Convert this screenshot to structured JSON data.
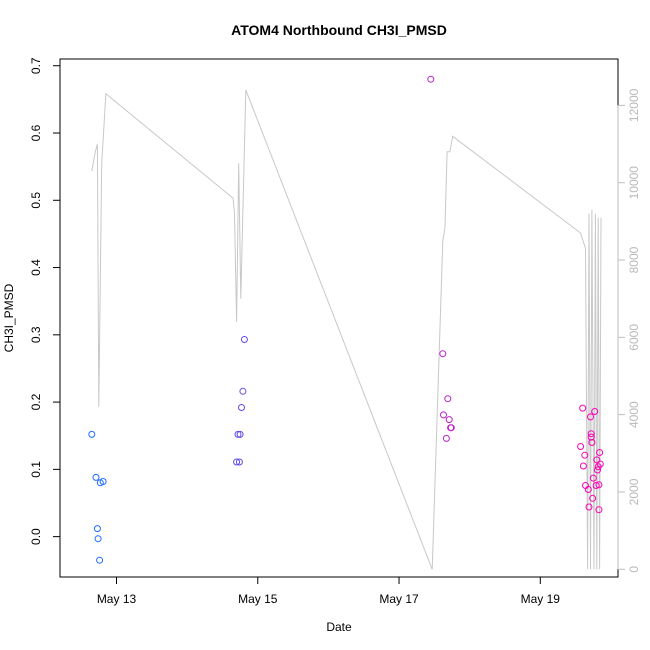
{
  "chart_data": {
    "type": "scatter",
    "title": "ATOM4 Northbound CH3I_PMSD",
    "xlabel": "Date",
    "ylabel": "CH3I_PMSD",
    "x_ticks": [
      {
        "label": "May 13",
        "day": 13
      },
      {
        "label": "May 15",
        "day": 15
      },
      {
        "label": "May 17",
        "day": 17
      },
      {
        "label": "May 19",
        "day": 19
      }
    ],
    "xlim_days": [
      12.2,
      20.1
    ],
    "y_left": {
      "ticks": [
        0.0,
        0.1,
        0.2,
        0.3,
        0.4,
        0.5,
        0.6,
        0.7
      ],
      "tick_labels": [
        "0.0",
        "0.1",
        "0.2",
        "0.3",
        "0.4",
        "0.5",
        "0.6",
        "0.7"
      ],
      "lim": [
        -0.06,
        0.71
      ]
    },
    "y_right": {
      "ticks": [
        0,
        2000,
        4000,
        6000,
        8000,
        10000,
        12000
      ],
      "tick_labels": [
        "0",
        "2000",
        "4000",
        "6000",
        "8000",
        "10000",
        "12000"
      ],
      "lim": [
        -200,
        13200
      ],
      "color": "#bdbdbd"
    },
    "points": [
      {
        "x": 12.65,
        "y": 0.152
      },
      {
        "x": 12.71,
        "y": 0.088
      },
      {
        "x": 12.73,
        "y": 0.012
      },
      {
        "x": 12.74,
        "y": -0.003
      },
      {
        "x": 12.76,
        "y": -0.035
      },
      {
        "x": 12.77,
        "y": 0.08
      },
      {
        "x": 12.81,
        "y": 0.082
      },
      {
        "x": 14.7,
        "y": 0.111
      },
      {
        "x": 14.72,
        "y": 0.152
      },
      {
        "x": 14.74,
        "y": 0.111
      },
      {
        "x": 14.75,
        "y": 0.152
      },
      {
        "x": 14.77,
        "y": 0.192
      },
      {
        "x": 14.79,
        "y": 0.216
      },
      {
        "x": 14.81,
        "y": 0.293
      },
      {
        "x": 17.45,
        "y": 0.68
      },
      {
        "x": 17.62,
        "y": 0.272
      },
      {
        "x": 17.63,
        "y": 0.181
      },
      {
        "x": 17.67,
        "y": 0.146
      },
      {
        "x": 17.69,
        "y": 0.205
      },
      {
        "x": 17.71,
        "y": 0.174
      },
      {
        "x": 17.73,
        "y": 0.162
      },
      {
        "x": 17.74,
        "y": 0.162
      },
      {
        "x": 19.57,
        "y": 0.134
      },
      {
        "x": 19.6,
        "y": 0.191
      },
      {
        "x": 19.61,
        "y": 0.105
      },
      {
        "x": 19.63,
        "y": 0.121
      },
      {
        "x": 19.64,
        "y": 0.076
      },
      {
        "x": 19.68,
        "y": 0.07
      },
      {
        "x": 19.69,
        "y": 0.044
      },
      {
        "x": 19.71,
        "y": 0.178
      },
      {
        "x": 19.72,
        "y": 0.153
      },
      {
        "x": 19.72,
        "y": 0.148
      },
      {
        "x": 19.73,
        "y": 0.14
      },
      {
        "x": 19.74,
        "y": 0.057
      },
      {
        "x": 19.75,
        "y": 0.087
      },
      {
        "x": 19.77,
        "y": 0.186
      },
      {
        "x": 19.79,
        "y": 0.076
      },
      {
        "x": 19.8,
        "y": 0.114
      },
      {
        "x": 19.81,
        "y": 0.099
      },
      {
        "x": 19.82,
        "y": 0.104
      },
      {
        "x": 19.83,
        "y": 0.077
      },
      {
        "x": 19.83,
        "y": 0.04
      },
      {
        "x": 19.84,
        "y": 0.125
      },
      {
        "x": 19.85,
        "y": 0.108
      }
    ],
    "line_right_axis": [
      {
        "x": 12.65,
        "y": 10300
      },
      {
        "x": 12.7,
        "y": 10800
      },
      {
        "x": 12.73,
        "y": 11000
      },
      {
        "x": 12.75,
        "y": 4200
      },
      {
        "x": 12.79,
        "y": 10500
      },
      {
        "x": 12.85,
        "y": 12300
      },
      {
        "x": 14.65,
        "y": 9600
      },
      {
        "x": 14.67,
        "y": 9200
      },
      {
        "x": 14.7,
        "y": 6400
      },
      {
        "x": 14.73,
        "y": 10500
      },
      {
        "x": 14.76,
        "y": 7000
      },
      {
        "x": 14.83,
        "y": 12400
      },
      {
        "x": 17.47,
        "y": 0
      },
      {
        "x": 17.62,
        "y": 8500
      },
      {
        "x": 17.65,
        "y": 8800
      },
      {
        "x": 17.68,
        "y": 10800
      },
      {
        "x": 17.72,
        "y": 10800
      },
      {
        "x": 17.76,
        "y": 11200
      },
      {
        "x": 19.57,
        "y": 8700
      },
      {
        "x": 19.64,
        "y": 8300
      },
      {
        "x": 19.67,
        "y": 0
      },
      {
        "x": 19.69,
        "y": 9200
      },
      {
        "x": 19.71,
        "y": 0
      },
      {
        "x": 19.73,
        "y": 9300
      },
      {
        "x": 19.76,
        "y": 0
      },
      {
        "x": 19.78,
        "y": 9200
      },
      {
        "x": 19.8,
        "y": 0
      },
      {
        "x": 19.82,
        "y": 9100
      },
      {
        "x": 19.84,
        "y": 0
      },
      {
        "x": 19.86,
        "y": 9100
      }
    ],
    "point_color_gradient": [
      "#1f6cff",
      "#ff00b4"
    ],
    "line_color": "#c8c8c8",
    "grid": false,
    "legend": "none"
  }
}
